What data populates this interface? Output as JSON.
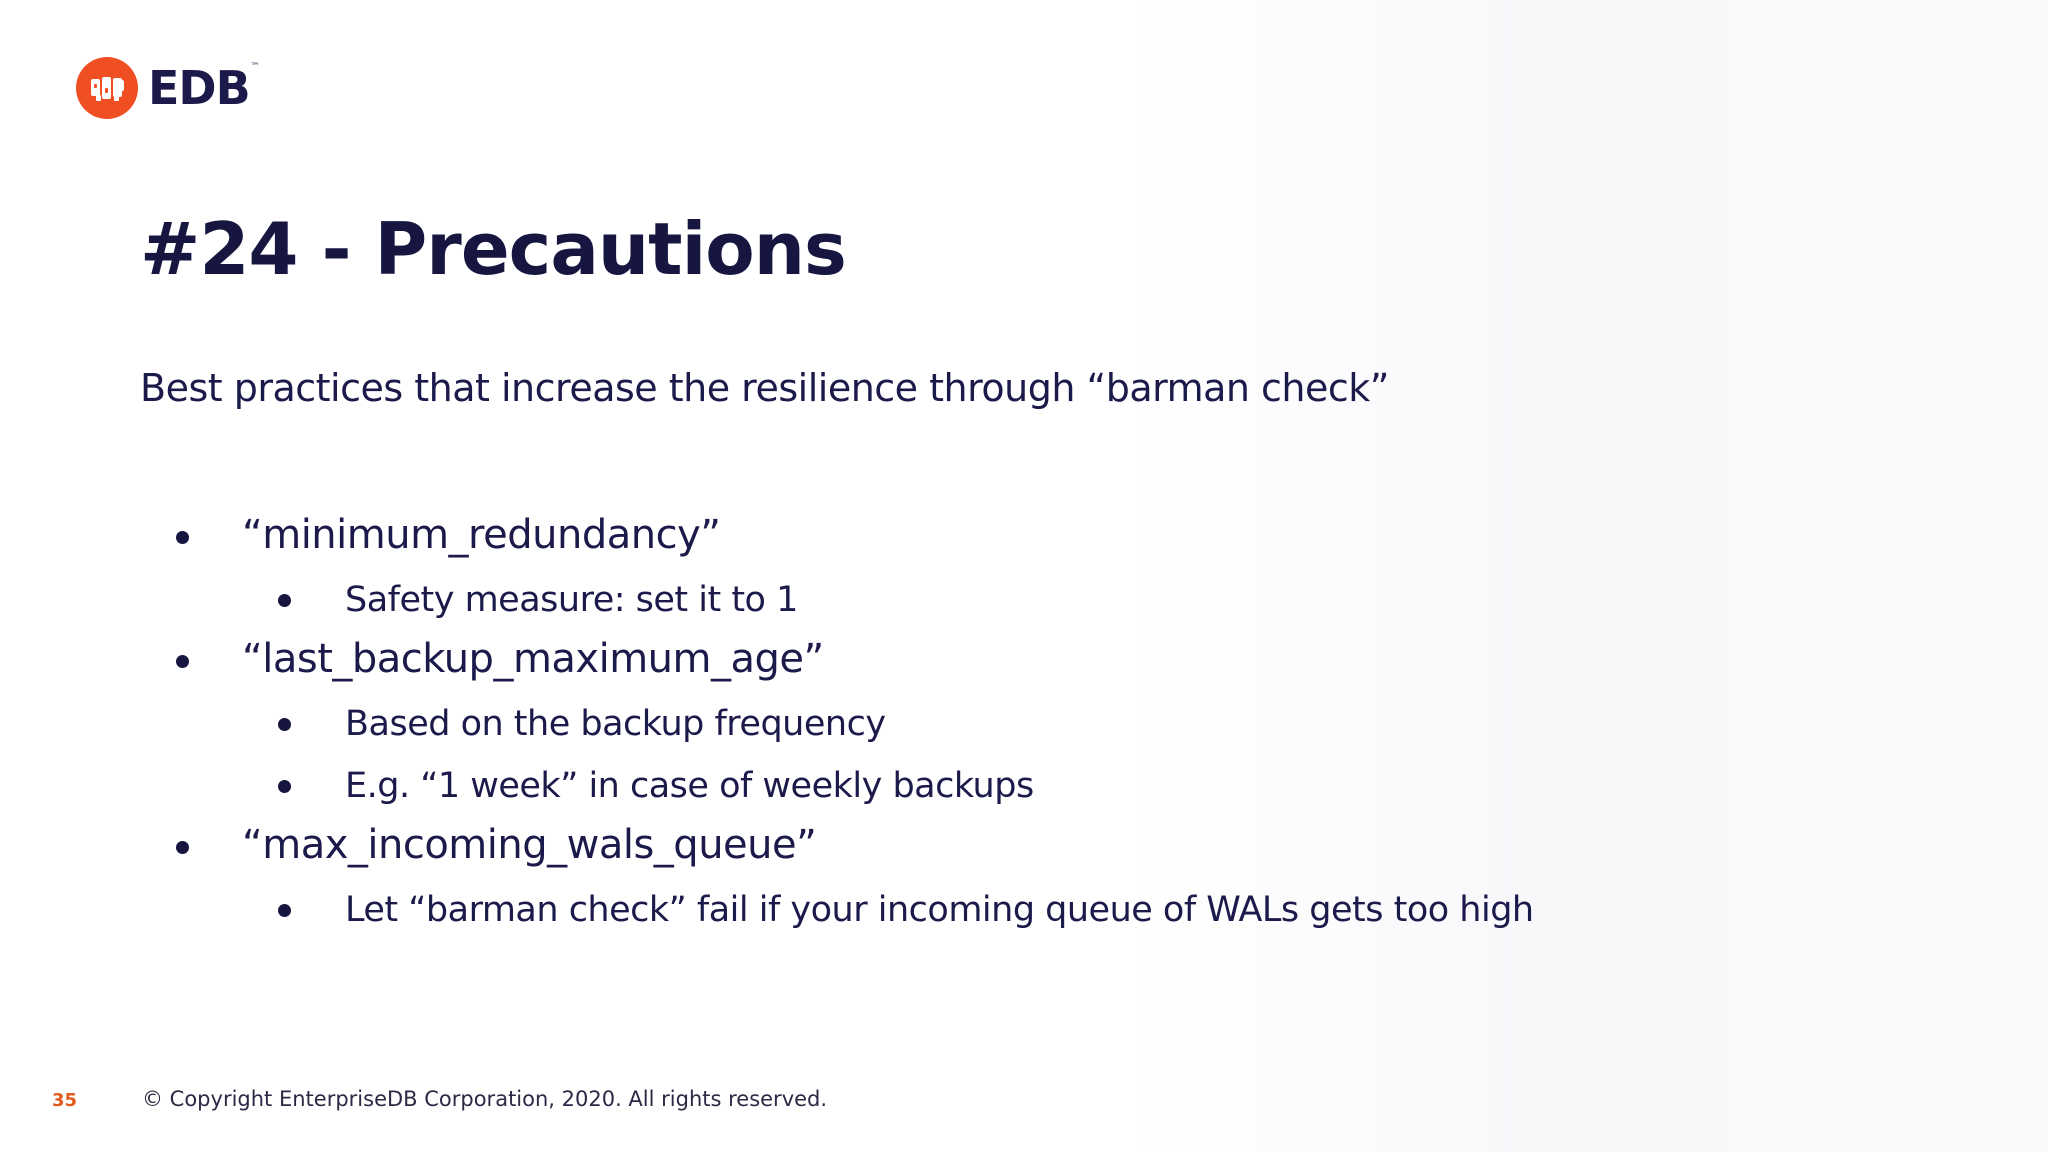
{
  "header": {
    "logo_text": "EDB",
    "logo_trademark": "™"
  },
  "slide": {
    "title": "#24 - Precautions",
    "subtitle": "Best practices that increase the resilience through “barman check”",
    "bullets": [
      {
        "text": "“minimum_redundancy”",
        "sub": [
          "Safety measure: set it to 1"
        ]
      },
      {
        "text": "“last_backup_maximum_age”",
        "sub": [
          "Based on the backup frequency",
          "E.g. “1 week” in case of weekly backups"
        ]
      },
      {
        "text": "“max_incoming_wals_queue”",
        "sub": [
          "Let “barman check” fail if your incoming queue of WALs gets too high"
        ]
      }
    ]
  },
  "footer": {
    "page_number": "35",
    "copyright": "© Copyright EnterpriseDB Corporation, 2020. All rights reserved."
  },
  "colors": {
    "brand_orange": "#f04e23",
    "text_navy": "#1b1a4b",
    "page_number": "#e05a1c"
  }
}
